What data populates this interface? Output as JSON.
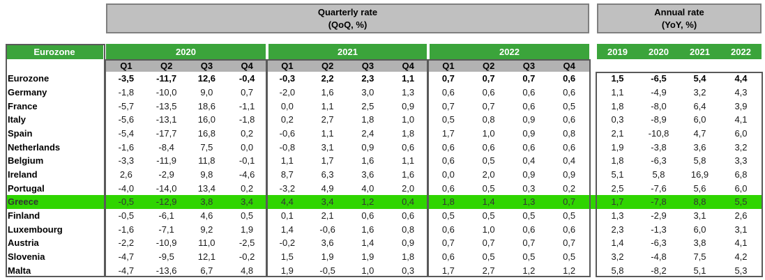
{
  "titles": {
    "quarterly_line1": "Quarterly rate",
    "quarterly_line2": "(QoQ, %)",
    "annual_line1": "Annual rate",
    "annual_line2": "(YoY, %)"
  },
  "colors": {
    "header_green": "#3BA43B",
    "highlight_green": "#2FD500",
    "box_gray": "#C0C0C0",
    "box_border_gray": "#7F7F7F",
    "quarter_row_gray": "#B2B2B2",
    "border_dark": "#595959"
  },
  "chart_data": {
    "type": "table",
    "corner_label": "Eurozone",
    "quarterly_section_label": "Quarterly rate (QoQ, %)",
    "annual_section_label": "Annual rate (YoY, %)",
    "quarterly_years": [
      "2020",
      "2021",
      "2022"
    ],
    "quarter_labels": [
      "Q1",
      "Q2",
      "Q3",
      "Q4"
    ],
    "annual_years": [
      "2019",
      "2020",
      "2021",
      "2022"
    ],
    "decimal_separator": ",",
    "rows": [
      {
        "country": "Eurozone",
        "bold": true,
        "quarterly": [
          -3.5,
          -11.7,
          12.6,
          -0.4,
          -0.3,
          2.2,
          2.3,
          1.1,
          0.7,
          0.7,
          0.7,
          0.6
        ],
        "annual": [
          1.5,
          -6.5,
          5.4,
          4.4
        ]
      },
      {
        "country": "Germany",
        "quarterly": [
          -1.8,
          -10.0,
          9.0,
          0.7,
          -2.0,
          1.6,
          3.0,
          1.3,
          0.6,
          0.6,
          0.6,
          0.6
        ],
        "annual": [
          1.1,
          -4.9,
          3.2,
          4.3
        ]
      },
      {
        "country": "France",
        "quarterly": [
          -5.7,
          -13.5,
          18.6,
          -1.1,
          0.0,
          1.1,
          2.5,
          0.9,
          0.7,
          0.7,
          0.6,
          0.5
        ],
        "annual": [
          1.8,
          -8.0,
          6.4,
          3.9
        ]
      },
      {
        "country": "Italy",
        "quarterly": [
          -5.6,
          -13.1,
          16.0,
          -1.8,
          0.2,
          2.7,
          1.8,
          1.0,
          0.5,
          0.8,
          0.9,
          0.6
        ],
        "annual": [
          0.3,
          -8.9,
          6.0,
          4.1
        ]
      },
      {
        "country": "Spain",
        "quarterly": [
          -5.4,
          -17.7,
          16.8,
          0.2,
          -0.6,
          1.1,
          2.4,
          1.8,
          1.7,
          1.0,
          0.9,
          0.8
        ],
        "annual": [
          2.1,
          -10.8,
          4.7,
          6.0
        ]
      },
      {
        "country": "Netherlands",
        "quarterly": [
          -1.6,
          -8.4,
          7.5,
          0.0,
          -0.8,
          3.1,
          0.9,
          0.6,
          0.6,
          0.6,
          0.6,
          0.6
        ],
        "annual": [
          1.9,
          -3.8,
          3.6,
          3.2
        ]
      },
      {
        "country": "Belgium",
        "quarterly": [
          -3.3,
          -11.9,
          11.8,
          -0.1,
          1.1,
          1.7,
          1.6,
          1.1,
          0.6,
          0.5,
          0.4,
          0.4
        ],
        "annual": [
          1.8,
          -6.3,
          5.8,
          3.3
        ]
      },
      {
        "country": "Ireland",
        "quarterly": [
          2.6,
          -2.9,
          9.8,
          -4.6,
          8.7,
          6.3,
          3.6,
          1.6,
          0.0,
          2.0,
          0.9,
          0.9
        ],
        "annual": [
          5.1,
          5.8,
          16.9,
          6.8
        ]
      },
      {
        "country": "Portugal",
        "quarterly": [
          -4.0,
          -14.0,
          13.4,
          0.2,
          -3.2,
          4.9,
          4.0,
          2.0,
          0.6,
          0.5,
          0.3,
          0.2
        ],
        "annual": [
          2.5,
          -7.6,
          5.6,
          6.0
        ]
      },
      {
        "country": "Greece",
        "highlight": true,
        "quarterly": [
          -0.5,
          -12.9,
          3.8,
          3.4,
          4.4,
          3.4,
          1.2,
          0.4,
          1.8,
          1.4,
          1.3,
          0.7
        ],
        "annual": [
          1.7,
          -7.8,
          8.8,
          5.5
        ]
      },
      {
        "country": "Finland",
        "quarterly": [
          -0.5,
          -6.1,
          4.6,
          0.5,
          0.1,
          2.1,
          0.6,
          0.6,
          0.5,
          0.5,
          0.5,
          0.5
        ],
        "annual": [
          1.3,
          -2.9,
          3.1,
          2.6
        ]
      },
      {
        "country": "Luxembourg",
        "quarterly": [
          -1.6,
          -7.1,
          9.2,
          1.9,
          1.4,
          -0.6,
          1.6,
          0.8,
          0.6,
          1.0,
          0.6,
          0.6
        ],
        "annual": [
          2.3,
          -1.3,
          6.0,
          3.1
        ]
      },
      {
        "country": "Austria",
        "quarterly": [
          -2.2,
          -10.9,
          11.0,
          -2.5,
          -0.2,
          3.6,
          1.4,
          0.9,
          0.7,
          0.7,
          0.7,
          0.7
        ],
        "annual": [
          1.4,
          -6.3,
          3.8,
          4.1
        ]
      },
      {
        "country": "Slovenia",
        "quarterly": [
          -4.7,
          -9.5,
          12.1,
          -0.2,
          1.5,
          1.9,
          1.9,
          1.8,
          0.6,
          0.5,
          0.5,
          0.5
        ],
        "annual": [
          3.2,
          -4.8,
          7.5,
          4.2
        ]
      },
      {
        "country": "Malta",
        "quarterly": [
          -4.7,
          -13.6,
          6.7,
          4.8,
          1.9,
          -0.5,
          1.0,
          0.3,
          1.7,
          2.7,
          1.2,
          1.2
        ],
        "annual": [
          5.8,
          -8.2,
          5.1,
          5.3
        ]
      }
    ]
  }
}
